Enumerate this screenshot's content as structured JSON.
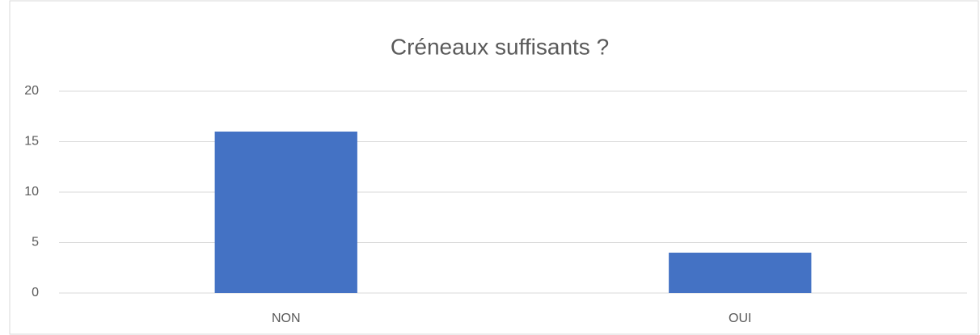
{
  "chart_data": {
    "type": "bar",
    "title": "Créneaux suffisants ?",
    "categories": [
      "NON",
      "OUI"
    ],
    "values": [
      16,
      4
    ],
    "color": "#4472c4",
    "ylim": [
      0,
      20
    ],
    "yticks": [
      0,
      5,
      10,
      15,
      20
    ],
    "grid": true
  }
}
